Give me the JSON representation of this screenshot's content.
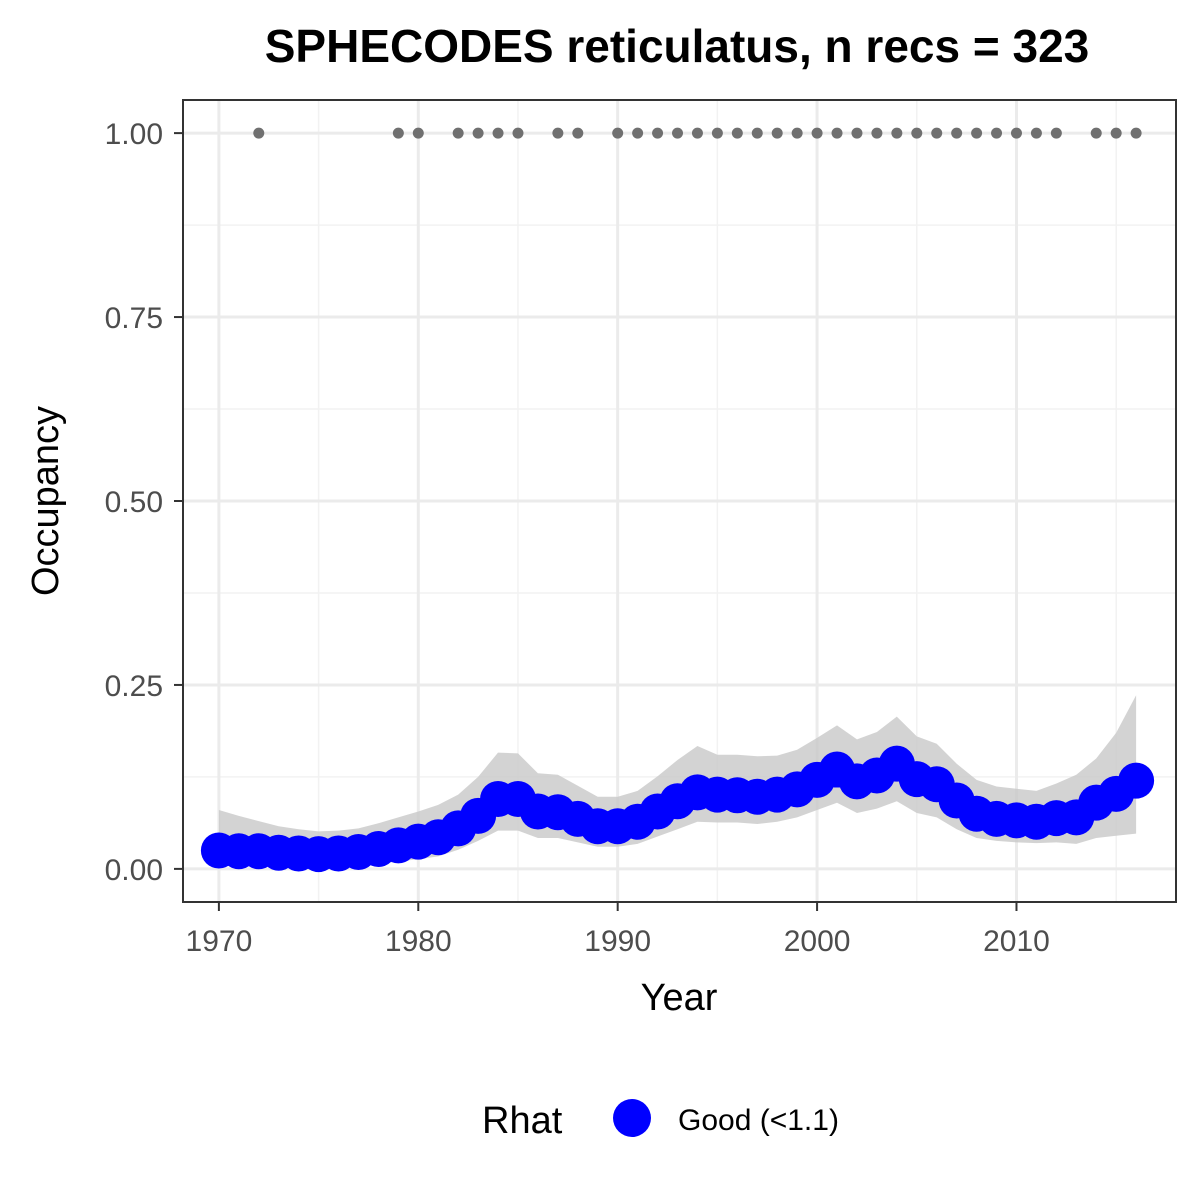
{
  "chart_data": {
    "type": "line",
    "title": "SPHECODES reticulatus, n recs = 323",
    "xlabel": "Year",
    "ylabel": "Occupancy",
    "xlim": [
      1968.2,
      2018.0
    ],
    "ylim": [
      -0.045,
      1.045
    ],
    "x_ticks": [
      1970,
      1980,
      1990,
      2000,
      2010
    ],
    "x_tick_labels": [
      "1970",
      "1980",
      "1990",
      "2000",
      "2010"
    ],
    "y_ticks": [
      0.0,
      0.25,
      0.5,
      0.75,
      1.0
    ],
    "y_tick_labels": [
      "0.00",
      "0.25",
      "0.50",
      "0.75",
      "1.00"
    ],
    "grid": true,
    "legend": {
      "position": "bottom",
      "title": "Rhat",
      "entries": [
        {
          "label": "Good (<1.1)",
          "color": "#0000ff"
        }
      ]
    },
    "series": [
      {
        "name": "Good (<1.1)",
        "color": "#0000ff",
        "x": [
          1970,
          1971,
          1972,
          1973,
          1974,
          1975,
          1976,
          1977,
          1978,
          1979,
          1980,
          1981,
          1982,
          1983,
          1984,
          1985,
          1986,
          1987,
          1988,
          1989,
          1990,
          1991,
          1992,
          1993,
          1994,
          1995,
          1996,
          1997,
          1998,
          1999,
          2000,
          2001,
          2002,
          2003,
          2004,
          2005,
          2006,
          2007,
          2008,
          2009,
          2010,
          2011,
          2012,
          2013,
          2014,
          2015,
          2016
        ],
        "y": [
          0.025,
          0.024,
          0.024,
          0.022,
          0.021,
          0.02,
          0.021,
          0.023,
          0.027,
          0.032,
          0.037,
          0.043,
          0.055,
          0.072,
          0.095,
          0.095,
          0.078,
          0.077,
          0.068,
          0.058,
          0.058,
          0.064,
          0.078,
          0.092,
          0.104,
          0.101,
          0.1,
          0.098,
          0.101,
          0.108,
          0.121,
          0.135,
          0.119,
          0.127,
          0.143,
          0.122,
          0.115,
          0.093,
          0.075,
          0.068,
          0.066,
          0.064,
          0.069,
          0.07,
          0.09,
          0.102,
          0.12
        ],
        "ci_lower": [
          0.005,
          0.005,
          0.005,
          0.005,
          0.005,
          0.005,
          0.005,
          0.005,
          0.007,
          0.01,
          0.013,
          0.017,
          0.026,
          0.038,
          0.052,
          0.052,
          0.042,
          0.042,
          0.036,
          0.03,
          0.03,
          0.034,
          0.044,
          0.054,
          0.064,
          0.063,
          0.063,
          0.061,
          0.064,
          0.07,
          0.08,
          0.09,
          0.076,
          0.082,
          0.092,
          0.076,
          0.07,
          0.054,
          0.042,
          0.038,
          0.036,
          0.035,
          0.036,
          0.034,
          0.042,
          0.045,
          0.048
        ],
        "ci_upper": [
          0.08,
          0.072,
          0.065,
          0.058,
          0.054,
          0.051,
          0.052,
          0.055,
          0.062,
          0.07,
          0.078,
          0.087,
          0.101,
          0.125,
          0.158,
          0.157,
          0.13,
          0.128,
          0.113,
          0.098,
          0.098,
          0.106,
          0.126,
          0.148,
          0.167,
          0.155,
          0.155,
          0.153,
          0.154,
          0.162,
          0.178,
          0.195,
          0.176,
          0.186,
          0.207,
          0.18,
          0.17,
          0.143,
          0.121,
          0.112,
          0.109,
          0.106,
          0.116,
          0.128,
          0.15,
          0.185,
          0.236
        ]
      }
    ],
    "observed_detections": {
      "y": 1.0,
      "color": "#707070",
      "x": [
        1972,
        1979,
        1980,
        1982,
        1983,
        1984,
        1985,
        1987,
        1988,
        1990,
        1991,
        1992,
        1993,
        1994,
        1995,
        1996,
        1997,
        1998,
        1999,
        2000,
        2001,
        2002,
        2003,
        2004,
        2005,
        2006,
        2007,
        2008,
        2009,
        2010,
        2011,
        2012,
        2014,
        2015,
        2016
      ]
    }
  }
}
